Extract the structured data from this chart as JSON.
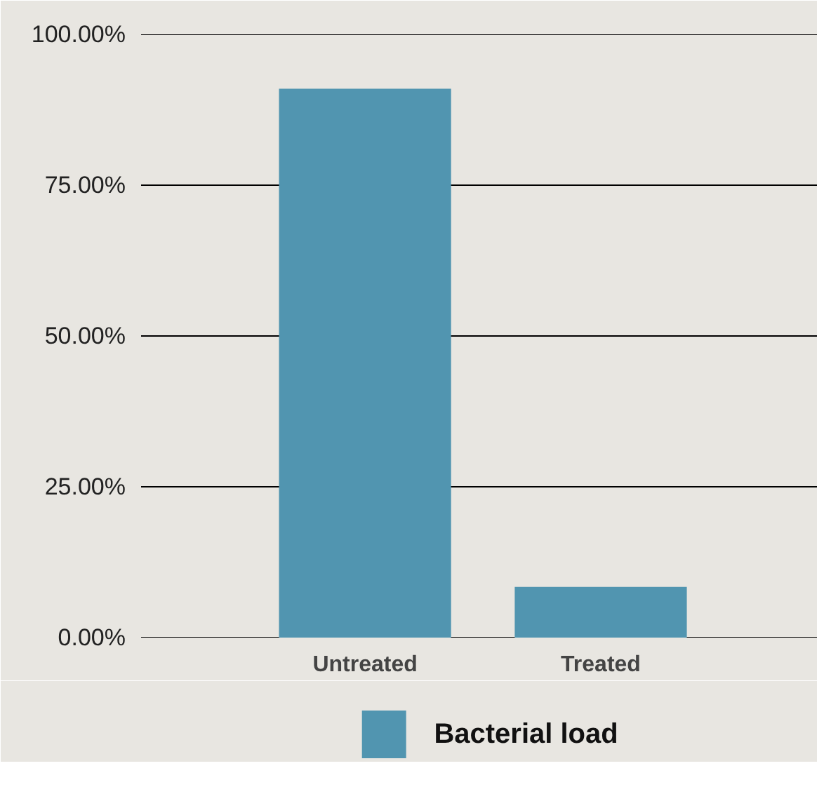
{
  "chart_data": {
    "type": "bar",
    "categories": [
      "Untreated",
      "Treated"
    ],
    "series": [
      {
        "name": "Bacterial load",
        "color": "#5195b0",
        "values": [
          91,
          8.4
        ]
      }
    ],
    "ylim": [
      0,
      100
    ],
    "yticks": [
      {
        "value": 0,
        "label": "0.00%"
      },
      {
        "value": 25,
        "label": "25.00%"
      },
      {
        "value": 50,
        "label": "50.00%"
      },
      {
        "value": 75,
        "label": "75.00%"
      },
      {
        "value": 100,
        "label": "100.00%"
      }
    ],
    "grid": "y",
    "legend": "bottom"
  }
}
